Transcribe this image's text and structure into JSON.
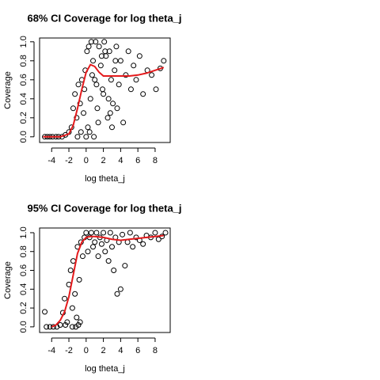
{
  "chart_data": [
    {
      "type": "scatter",
      "title": "68% CI Coverage for log theta_j",
      "xlabel": "log theta_j",
      "ylabel": "Coverage",
      "xlim": [
        -5.4,
        9.75
      ],
      "ylim": [
        -0.06,
        1.04
      ],
      "xticks": [
        -4,
        -2,
        0,
        2,
        4,
        6,
        8
      ],
      "yticks": [
        {
          "value": 0,
          "label": "0.0"
        },
        0.2,
        0.4,
        0.6,
        0.8,
        {
          "value": 1,
          "label": "1.0"
        }
      ],
      "points": {
        "color": "#000000",
        "x": [
          -4.8,
          -4.5,
          -4.2,
          -3.9,
          -3.5,
          -3.2,
          -2.8,
          -2.4,
          -2.0,
          -1.7,
          -1.5,
          -1.3,
          -1.1,
          -0.9,
          -0.7,
          -0.5,
          -0.3,
          -0.1,
          0.1,
          0.2,
          0.3,
          0.5,
          0.6,
          0.8,
          1.0,
          1.1,
          1.3,
          1.5,
          1.7,
          1.9,
          2.1,
          2.3,
          2.5,
          2.7,
          2.9,
          3.1,
          3.3,
          3.5,
          3.8,
          4.0,
          4.3,
          4.6,
          4.9,
          5.2,
          5.5,
          5.8,
          6.2,
          6.6,
          7.1,
          7.6,
          8.1,
          8.6,
          9.0,
          0.4,
          0.9,
          1.4,
          1.8,
          2.2,
          2.6,
          3.0,
          3.4,
          0.0,
          -0.2,
          0.7,
          1.2,
          2.0,
          2.8,
          3.6,
          -1.0,
          -0.6
        ],
        "y": [
          0,
          0,
          0,
          0,
          0,
          0,
          0,
          0.02,
          0.05,
          0.1,
          0.3,
          0.45,
          0.2,
          0.55,
          0.35,
          0.6,
          0.25,
          0.7,
          0.9,
          0.1,
          0.95,
          0.4,
          1.0,
          0.8,
          0.6,
          1.0,
          0.3,
          0.95,
          0.75,
          0.5,
          1.0,
          0.85,
          0.2,
          0.9,
          0.6,
          0.35,
          0.7,
          0.95,
          0.55,
          0.8,
          0.15,
          0.65,
          0.9,
          0.5,
          0.75,
          0.6,
          0.85,
          0.45,
          0.7,
          0.65,
          0.5,
          0.72,
          0.8,
          0.05,
          0.0,
          0.15,
          0.85,
          0.9,
          0.4,
          0.1,
          0.8,
          0.0,
          0.5,
          0.65,
          0.55,
          0.45,
          0.25,
          0.3,
          0.0,
          0.05
        ]
      },
      "smooth": {
        "color": "#e41a1c",
        "x": [
          -5,
          -4,
          -3,
          -2,
          -1.5,
          -1,
          -0.5,
          0,
          0.5,
          1,
          1.5,
          2,
          3,
          4,
          5,
          6,
          7,
          8,
          9
        ],
        "y": [
          0,
          0,
          0,
          0.03,
          0.12,
          0.3,
          0.5,
          0.68,
          0.76,
          0.74,
          0.68,
          0.64,
          0.64,
          0.64,
          0.64,
          0.65,
          0.67,
          0.7,
          0.73
        ]
      }
    },
    {
      "type": "scatter",
      "title": "95% CI Coverage for  log theta_j",
      "xlabel": "log theta_j",
      "ylabel": "Coverage",
      "xlim": [
        -5.4,
        9.75
      ],
      "ylim": [
        -0.06,
        1.05
      ],
      "xticks": [
        -4,
        -2,
        0,
        2,
        4,
        6,
        8
      ],
      "yticks": [
        {
          "value": 0,
          "label": "0.0"
        },
        0.2,
        0.4,
        0.6,
        0.8,
        {
          "value": 1,
          "label": "1.0"
        }
      ],
      "points": {
        "color": "#000000",
        "x": [
          -4.8,
          -4.6,
          -4.2,
          -3.8,
          -3.4,
          -3.0,
          -2.7,
          -2.5,
          -2.2,
          -2.0,
          -1.8,
          -1.6,
          -1.5,
          -1.3,
          -1.1,
          -1.0,
          -0.8,
          -0.6,
          -0.4,
          -0.2,
          0.0,
          0.2,
          0.4,
          0.6,
          0.8,
          1.0,
          1.2,
          1.4,
          1.6,
          1.8,
          2.0,
          2.2,
          2.4,
          2.6,
          2.8,
          3.0,
          3.2,
          3.4,
          3.6,
          3.8,
          4.0,
          4.2,
          4.5,
          4.8,
          5.1,
          5.4,
          5.8,
          6.2,
          6.6,
          7.0,
          7.5,
          8.0,
          8.4,
          8.8,
          9.2,
          -1.2,
          -0.9,
          -0.7,
          -1.6,
          -2.4
        ],
        "y": [
          0.16,
          0,
          0,
          0,
          0,
          0.02,
          0.15,
          0.3,
          0.05,
          0.45,
          0.6,
          0.2,
          0.7,
          0.35,
          0.1,
          0.85,
          0.5,
          0.9,
          0.75,
          0.95,
          1.0,
          0.8,
          0.95,
          1.0,
          0.85,
          0.9,
          1.0,
          0.75,
          0.95,
          0.88,
          1.0,
          0.8,
          0.92,
          0.7,
          1.0,
          0.85,
          0.6,
          0.95,
          0.35,
          0.9,
          0.4,
          0.98,
          0.65,
          0.9,
          1.0,
          0.85,
          0.95,
          0.92,
          0.88,
          0.97,
          0.95,
          1.0,
          0.93,
          0.96,
          1.0,
          0,
          0.02,
          0.05,
          0.0,
          0.02
        ]
      },
      "smooth": {
        "color": "#e41a1c",
        "x": [
          -4,
          -3.5,
          -3,
          -2.5,
          -2,
          -1.5,
          -1,
          -0.5,
          0,
          0.5,
          1,
          2,
          3,
          4,
          5,
          6,
          7,
          8,
          9
        ],
        "y": [
          0,
          0.02,
          0.07,
          0.16,
          0.32,
          0.55,
          0.78,
          0.9,
          0.95,
          0.96,
          0.96,
          0.95,
          0.93,
          0.92,
          0.93,
          0.94,
          0.95,
          0.96,
          0.97
        ]
      }
    }
  ]
}
